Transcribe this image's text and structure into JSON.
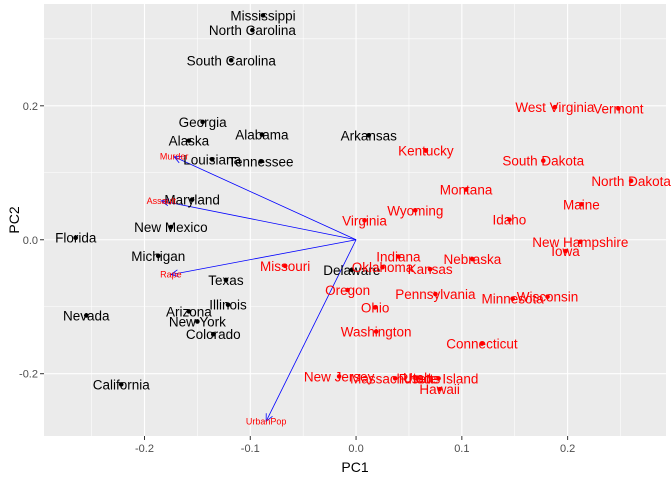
{
  "chart_data": {
    "type": "scatter",
    "title": "",
    "xlabel": "PC1",
    "ylabel": "PC2",
    "xlim": [
      -0.295,
      0.293
    ],
    "ylim": [
      -0.293,
      0.352
    ],
    "x_ticks": [
      -0.2,
      -0.1,
      0.0,
      0.1,
      0.2
    ],
    "x_tick_labels": [
      "-0.2",
      "-0.1",
      "0.0",
      "0.1",
      "0.2"
    ],
    "y_ticks": [
      -0.2,
      0.0,
      0.2
    ],
    "y_tick_labels": [
      "-0.2",
      "0.0",
      "0.2"
    ],
    "grid": true,
    "background": "#ebebeb",
    "grid_color": "#ffffff",
    "colors": {
      "cluster_1": "#000000",
      "cluster_2": "#ff0000",
      "loadings": "#0000ff",
      "loading_labels": "#ff0000"
    },
    "points": [
      {
        "label": "Mississippi",
        "x": -0.088,
        "y": 0.335,
        "group": "cluster_1"
      },
      {
        "label": "North Carolina",
        "x": -0.098,
        "y": 0.313,
        "group": "cluster_1"
      },
      {
        "label": "South Carolina",
        "x": -0.118,
        "y": 0.268,
        "group": "cluster_1"
      },
      {
        "label": "Georgia",
        "x": -0.145,
        "y": 0.176,
        "group": "cluster_1"
      },
      {
        "label": "Alabama",
        "x": -0.089,
        "y": 0.157,
        "group": "cluster_1"
      },
      {
        "label": "Alaska",
        "x": -0.158,
        "y": 0.148,
        "group": "cluster_1"
      },
      {
        "label": "Arkansas",
        "x": 0.012,
        "y": 0.156,
        "group": "cluster_1"
      },
      {
        "label": "Louisiana",
        "x": -0.136,
        "y": 0.12,
        "group": "cluster_1"
      },
      {
        "label": "Tennessee",
        "x": -0.09,
        "y": 0.117,
        "group": "cluster_1"
      },
      {
        "label": "Maryland",
        "x": -0.155,
        "y": 0.06,
        "group": "cluster_1"
      },
      {
        "label": "New Mexico",
        "x": -0.175,
        "y": 0.019,
        "group": "cluster_1"
      },
      {
        "label": "Florida",
        "x": -0.265,
        "y": 0.003,
        "group": "cluster_1"
      },
      {
        "label": "Michigan",
        "x": -0.187,
        "y": -0.024,
        "group": "cluster_1"
      },
      {
        "label": "Texas",
        "x": -0.123,
        "y": -0.06,
        "group": "cluster_1"
      },
      {
        "label": "Delaware",
        "x": -0.004,
        "y": -0.045,
        "group": "cluster_1"
      },
      {
        "label": "Illinois",
        "x": -0.121,
        "y": -0.097,
        "group": "cluster_1"
      },
      {
        "label": "Arizona",
        "x": -0.158,
        "y": -0.107,
        "group": "cluster_1"
      },
      {
        "label": "New York",
        "x": -0.15,
        "y": -0.122,
        "group": "cluster_1"
      },
      {
        "label": "Nevada",
        "x": -0.255,
        "y": -0.113,
        "group": "cluster_1"
      },
      {
        "label": "Colorado",
        "x": -0.135,
        "y": -0.141,
        "group": "cluster_1"
      },
      {
        "label": "California",
        "x": -0.222,
        "y": -0.216,
        "group": "cluster_1"
      },
      {
        "label": "West Virginia",
        "x": 0.188,
        "y": 0.198,
        "group": "cluster_2"
      },
      {
        "label": "Vermont",
        "x": 0.248,
        "y": 0.196,
        "group": "cluster_2"
      },
      {
        "label": "Kentucky",
        "x": 0.066,
        "y": 0.133,
        "group": "cluster_2"
      },
      {
        "label": "South Dakota",
        "x": 0.177,
        "y": 0.118,
        "group": "cluster_2"
      },
      {
        "label": "North Dakota",
        "x": 0.26,
        "y": 0.088,
        "group": "cluster_2"
      },
      {
        "label": "Montana",
        "x": 0.104,
        "y": 0.075,
        "group": "cluster_2"
      },
      {
        "label": "Maine",
        "x": 0.213,
        "y": 0.053,
        "group": "cluster_2"
      },
      {
        "label": "Wyoming",
        "x": 0.056,
        "y": 0.044,
        "group": "cluster_2"
      },
      {
        "label": "Virginia",
        "x": 0.008,
        "y": 0.029,
        "group": "cluster_2"
      },
      {
        "label": "Idaho",
        "x": 0.145,
        "y": 0.03,
        "group": "cluster_2"
      },
      {
        "label": "New Hampshire",
        "x": 0.212,
        "y": -0.003,
        "group": "cluster_2"
      },
      {
        "label": "Iowa",
        "x": 0.198,
        "y": -0.017,
        "group": "cluster_2"
      },
      {
        "label": "Indiana",
        "x": 0.04,
        "y": -0.025,
        "group": "cluster_2"
      },
      {
        "label": "Nebraska",
        "x": 0.11,
        "y": -0.029,
        "group": "cluster_2"
      },
      {
        "label": "Missouri",
        "x": -0.067,
        "y": -0.039,
        "group": "cluster_2"
      },
      {
        "label": "Oklahoma",
        "x": 0.025,
        "y": -0.041,
        "group": "cluster_2"
      },
      {
        "label": "Kansas",
        "x": 0.07,
        "y": -0.044,
        "group": "cluster_2"
      },
      {
        "label": "Oregon",
        "x": -0.008,
        "y": -0.075,
        "group": "cluster_2"
      },
      {
        "label": "Pennsylvania",
        "x": 0.075,
        "y": -0.081,
        "group": "cluster_2"
      },
      {
        "label": "Wisconsin",
        "x": 0.181,
        "y": -0.085,
        "group": "cluster_2"
      },
      {
        "label": "Minnesota",
        "x": 0.148,
        "y": -0.088,
        "group": "cluster_2"
      },
      {
        "label": "Ohio",
        "x": 0.018,
        "y": -0.101,
        "group": "cluster_2"
      },
      {
        "label": "Washington",
        "x": 0.019,
        "y": -0.137,
        "group": "cluster_2"
      },
      {
        "label": "Connecticut",
        "x": 0.119,
        "y": -0.155,
        "group": "cluster_2"
      },
      {
        "label": "New Jersey",
        "x": -0.016,
        "y": -0.204,
        "group": "cluster_2"
      },
      {
        "label": "Massachusetts",
        "x": 0.037,
        "y": -0.207,
        "group": "cluster_2"
      },
      {
        "label": "Utah",
        "x": 0.058,
        "y": -0.206,
        "group": "cluster_2"
      },
      {
        "label": "Rhode Island",
        "x": 0.078,
        "y": -0.207,
        "group": "cluster_2"
      },
      {
        "label": "Hawaii",
        "x": 0.079,
        "y": -0.223,
        "group": "cluster_2"
      }
    ],
    "loadings": [
      {
        "label": "Murder",
        "x": -0.172,
        "y": 0.124
      },
      {
        "label": "Assault",
        "x": -0.184,
        "y": 0.058
      },
      {
        "label": "Rape",
        "x": -0.175,
        "y": -0.052
      },
      {
        "label": "UrbanPop",
        "x": -0.085,
        "y": -0.271
      }
    ],
    "loading_origin": {
      "x": 0.0,
      "y": 0.0
    }
  }
}
